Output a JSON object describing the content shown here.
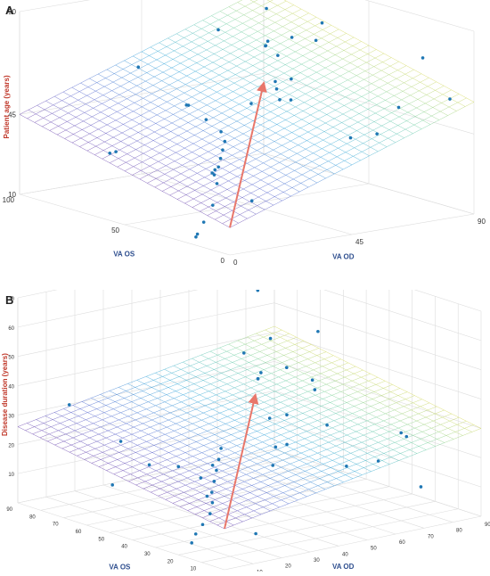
{
  "figure": {
    "panel_a_label": "A",
    "panel_b_label": "B"
  },
  "colors": {
    "points": "#1f77b4",
    "arrow": "#e8776b",
    "label_blue": "#2f4f8f",
    "label_red": "#c0392b"
  },
  "chart_data": [
    {
      "type": "scatter",
      "panel": "A",
      "title": "",
      "xlabel": "VA OD",
      "ylabel": "VA OS",
      "zlabel": "Patient age (years)",
      "xlim": [
        0,
        90
      ],
      "ylim": [
        0,
        100
      ],
      "zlim": [
        10,
        90
      ],
      "x_ticks": [
        "0",
        "45",
        "90"
      ],
      "y_ticks": [
        "0",
        "50",
        "100"
      ],
      "z_ticks": [
        "10",
        "45",
        "90"
      ],
      "grid": true,
      "fitted_plane": {
        "z_at_origin": 22,
        "z_at_xmax": 59,
        "z_at_ymax": 45
      },
      "arrow": {
        "from": [
          0,
          0,
          22
        ],
        "to": [
          55,
          55,
          59
        ]
      },
      "points": [
        [
          2,
          5,
          58
        ],
        [
          2,
          6,
          54
        ],
        [
          2,
          7,
          50
        ],
        [
          2,
          8,
          46
        ],
        [
          2,
          10,
          42
        ],
        [
          3,
          10,
          38
        ],
        [
          3,
          12,
          28
        ],
        [
          2,
          15,
          20
        ],
        [
          2,
          18,
          14
        ],
        [
          3,
          20,
          12
        ],
        [
          10,
          70,
          34
        ],
        [
          20,
          80,
          30
        ],
        [
          40,
          60,
          22
        ],
        [
          30,
          50,
          50
        ],
        [
          50,
          70,
          80
        ],
        [
          15,
          40,
          62
        ],
        [
          60,
          20,
          44
        ],
        [
          70,
          10,
          58
        ],
        [
          75,
          5,
          80
        ],
        [
          85,
          5,
          60
        ],
        [
          45,
          40,
          84
        ],
        [
          50,
          35,
          86
        ],
        [
          55,
          30,
          85
        ],
        [
          48,
          45,
          80
        ],
        [
          52,
          50,
          78
        ],
        [
          40,
          30,
          70
        ],
        [
          42,
          25,
          72
        ],
        [
          38,
          20,
          65
        ],
        [
          30,
          15,
          68
        ],
        [
          25,
          10,
          75
        ],
        [
          60,
          60,
          90
        ],
        [
          65,
          40,
          88
        ],
        [
          58,
          52,
          72
        ],
        [
          35,
          35,
          60
        ],
        [
          20,
          30,
          52
        ],
        [
          10,
          20,
          40
        ],
        [
          8,
          30,
          66
        ],
        [
          5,
          50,
          78
        ],
        [
          62,
          10,
          48
        ],
        [
          12,
          5,
          30
        ]
      ]
    },
    {
      "type": "scatter",
      "panel": "B",
      "title": "",
      "xlabel": "VA OD",
      "ylabel": "VA OS",
      "zlabel": "Disease duration (years)",
      "xlim": [
        0,
        90
      ],
      "ylim": [
        0,
        90
      ],
      "zlim": [
        0,
        70
      ],
      "x_ticks": [
        "0",
        "10",
        "20",
        "30",
        "40",
        "50",
        "60",
        "70",
        "80",
        "90"
      ],
      "y_ticks": [
        "0",
        "10",
        "20",
        "30",
        "40",
        "50",
        "60",
        "70",
        "80",
        "90"
      ],
      "z_ticks": [
        "10",
        "20",
        "30",
        "40",
        "50",
        "60",
        "70"
      ],
      "grid": true,
      "fitted_plane": {
        "z_at_origin": 14,
        "z_at_xmax": 30,
        "z_at_ymax": 26
      },
      "arrow": {
        "from": [
          0,
          0,
          14
        ],
        "to": [
          55,
          55,
          34
        ]
      },
      "points": [
        [
          2,
          4,
          40
        ],
        [
          2,
          5,
          36
        ],
        [
          2,
          6,
          32
        ],
        [
          2,
          7,
          28
        ],
        [
          2,
          8,
          24
        ],
        [
          3,
          9,
          20
        ],
        [
          3,
          10,
          16
        ],
        [
          2,
          12,
          12
        ],
        [
          2,
          15,
          8
        ],
        [
          3,
          18,
          4
        ],
        [
          10,
          80,
          34
        ],
        [
          20,
          70,
          22
        ],
        [
          40,
          60,
          8
        ],
        [
          75,
          40,
          10
        ],
        [
          85,
          20,
          6
        ],
        [
          45,
          40,
          48
        ],
        [
          50,
          35,
          50
        ],
        [
          55,
          30,
          46
        ],
        [
          48,
          45,
          44
        ],
        [
          52,
          50,
          42
        ],
        [
          40,
          30,
          36
        ],
        [
          42,
          25,
          38
        ],
        [
          38,
          20,
          30
        ],
        [
          30,
          15,
          32
        ],
        [
          25,
          10,
          28
        ],
        [
          60,
          60,
          68
        ],
        [
          65,
          40,
          58
        ],
        [
          58,
          52,
          54
        ],
        [
          35,
          35,
          58
        ],
        [
          20,
          30,
          24
        ],
        [
          10,
          20,
          18
        ],
        [
          8,
          30,
          26
        ],
        [
          70,
          10,
          30
        ],
        [
          62,
          10,
          22
        ],
        [
          80,
          60,
          30
        ],
        [
          15,
          5,
          8
        ],
        [
          5,
          55,
          14
        ],
        [
          30,
          70,
          12
        ],
        [
          88,
          30,
          20
        ],
        [
          40,
          5,
          40
        ]
      ]
    }
  ]
}
